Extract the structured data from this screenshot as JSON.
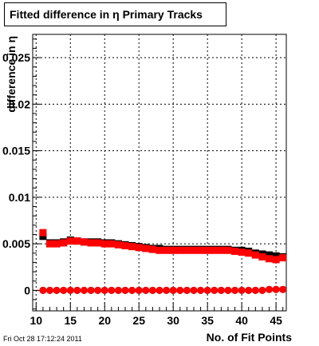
{
  "chart_data": {
    "type": "scatter",
    "title": "Fitted difference in  η Primary Tracks",
    "xlabel": "No. of Fit Points",
    "ylabel": "difference in η",
    "xlim": [
      9.5,
      46.5
    ],
    "ylim": [
      -0.0022,
      0.0275
    ],
    "x_ticks": [
      "10",
      "15",
      "20",
      "25",
      "30",
      "35",
      "40",
      "45"
    ],
    "x_tick_values": [
      10,
      15,
      20,
      25,
      30,
      35,
      40,
      45
    ],
    "y_ticks": [
      "0",
      "0.005",
      "0.01",
      "0.015",
      "0.02",
      "0.025"
    ],
    "y_tick_values": [
      0,
      0.005,
      0.01,
      0.015,
      0.02,
      0.025
    ],
    "grid": true,
    "x": [
      11,
      12,
      13,
      14,
      15,
      16,
      17,
      18,
      19,
      20,
      21,
      22,
      23,
      24,
      25,
      26,
      27,
      28,
      29,
      30,
      31,
      32,
      33,
      34,
      35,
      36,
      37,
      38,
      39,
      40,
      41,
      42,
      43,
      44,
      45,
      46
    ],
    "series": [
      {
        "color": "#000000",
        "marker": "square",
        "values": [
          0.0058,
          0.0051,
          0.0051,
          0.0052,
          0.0054,
          0.0053,
          0.0052,
          0.0052,
          0.0052,
          0.0051,
          0.0051,
          0.005,
          0.0049,
          0.0048,
          0.0047,
          0.0046,
          0.0045,
          0.0045,
          0.0044,
          0.0044,
          0.0044,
          0.0044,
          0.0044,
          0.0044,
          0.0044,
          0.0044,
          0.0044,
          0.0044,
          0.0043,
          0.0043,
          0.0042,
          0.004,
          0.0039,
          0.0038,
          0.0037,
          0.0036
        ]
      },
      {
        "color": "#ff0000",
        "marker": "square",
        "values": [
          0.0062,
          0.005,
          0.005,
          0.0051,
          0.0053,
          0.0053,
          0.0052,
          0.0051,
          0.0051,
          0.005,
          0.005,
          0.0049,
          0.0048,
          0.0047,
          0.0046,
          0.0045,
          0.0044,
          0.0043,
          0.0043,
          0.0043,
          0.0043,
          0.0043,
          0.0043,
          0.0043,
          0.0043,
          0.0043,
          0.0043,
          0.0043,
          0.0042,
          0.0041,
          0.004,
          0.0038,
          0.0036,
          0.0034,
          0.0033,
          0.0035
        ]
      },
      {
        "color": "#000000",
        "marker": "circle",
        "values": [
          0.0,
          0.0,
          0.0,
          0.0,
          0.0,
          0.0,
          0.0,
          0.0,
          0.0,
          0.0,
          0.0,
          0.0,
          0.0,
          0.0,
          0.0,
          0.0,
          0.0,
          0.0,
          0.0,
          0.0,
          0.0,
          0.0,
          0.0,
          0.0,
          0.0,
          0.0,
          0.0,
          0.0,
          0.0,
          0.0,
          0.0,
          0.0,
          0.0,
          0.0001,
          0.0001,
          0.0001
        ]
      },
      {
        "color": "#ff0000",
        "marker": "circle",
        "values": [
          0.0,
          0.0,
          0.0,
          0.0,
          0.0,
          0.0,
          0.0,
          0.0,
          0.0,
          0.0,
          0.0,
          0.0,
          0.0,
          0.0,
          0.0,
          0.0,
          0.0,
          0.0,
          0.0,
          0.0,
          0.0,
          0.0,
          0.0,
          0.0,
          0.0,
          0.0,
          0.0,
          0.0,
          0.0,
          0.0,
          0.0,
          0.0,
          0.0,
          0.0001,
          0.0001,
          0.0001
        ]
      }
    ]
  },
  "footer": {
    "timestamp": "Fri Oct 28 17:12:24 2011"
  }
}
